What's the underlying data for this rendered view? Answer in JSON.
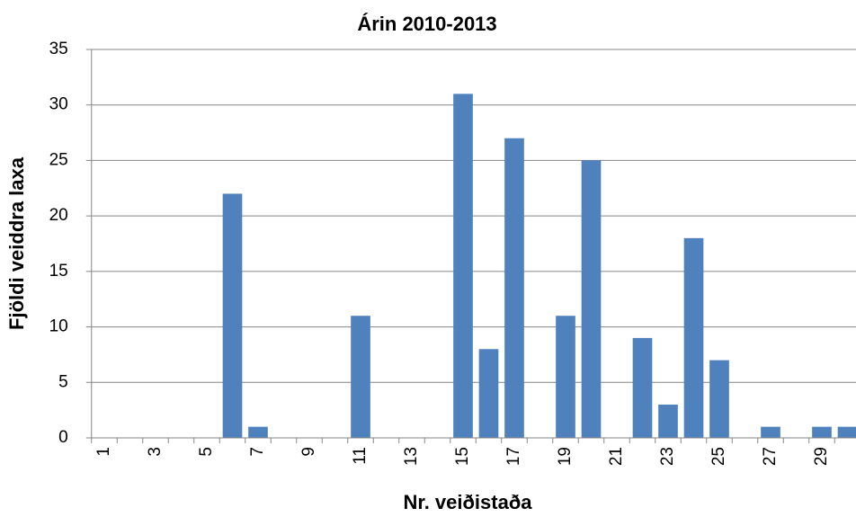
{
  "chart_data": {
    "type": "bar",
    "title": "Árin 2010-2013",
    "x_label": "Nr. veiðistaða",
    "y_label": "Fjöldi veiddra laxa",
    "categories": [
      1,
      null,
      3,
      null,
      5,
      null,
      7,
      null,
      9,
      null,
      11,
      null,
      13,
      null,
      15,
      null,
      17,
      null,
      19,
      null,
      21,
      null,
      23,
      null,
      25,
      null,
      27,
      null,
      29,
      null
    ],
    "values": [
      0,
      0,
      0,
      0,
      0,
      22,
      1,
      0,
      0,
      0,
      11,
      0,
      0,
      0,
      31,
      8,
      27,
      0,
      11,
      25,
      0,
      9,
      3,
      18,
      7,
      0,
      1,
      0,
      1,
      1
    ],
    "color": "#4f81bd",
    "ylim": [
      0,
      35
    ],
    "yticks": [
      0,
      5,
      10,
      15,
      20,
      25,
      30,
      35
    ],
    "grid": true
  }
}
